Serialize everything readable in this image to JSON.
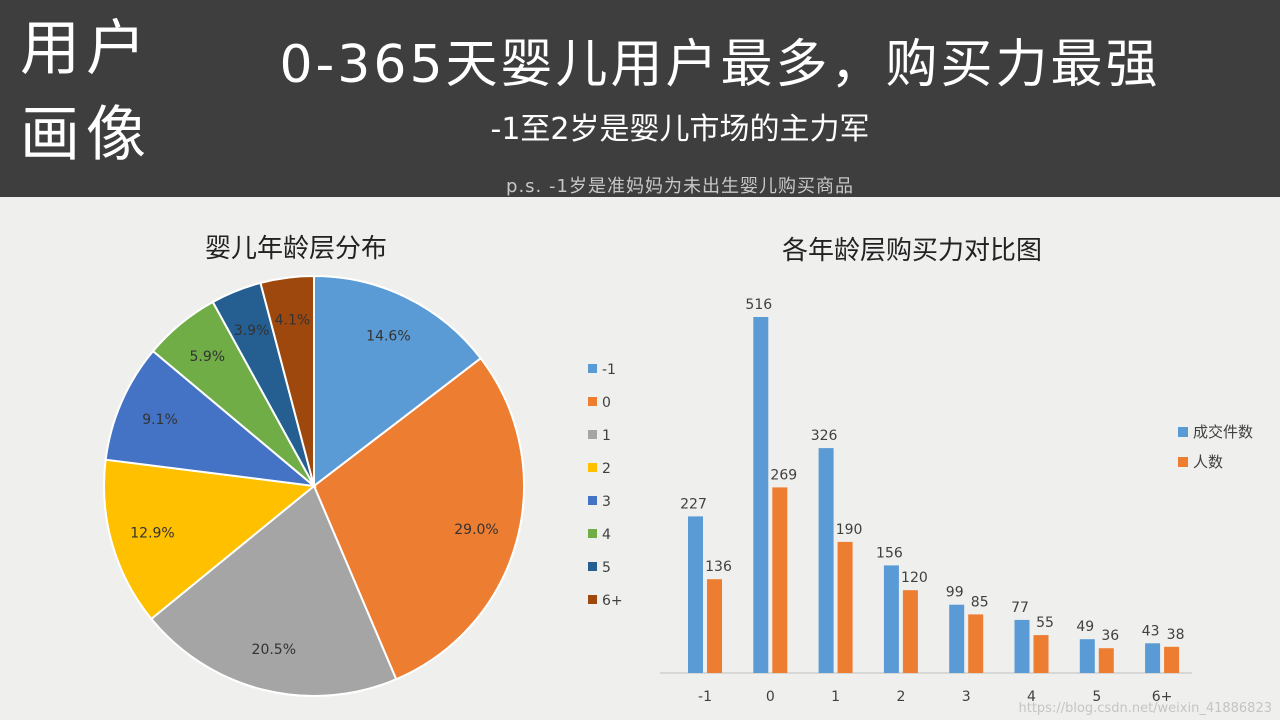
{
  "header": {
    "section_label_line1": "用户",
    "section_label_line2": "画像",
    "title": "0-365天婴儿用户最多，购买力最强",
    "subtitle": "-1至2岁是婴儿市场的主力军",
    "note": "p.s. -1岁是准妈妈为未出生婴儿购买商品"
  },
  "watermark": "https://blog.csdn.net/weixin_41886823",
  "chart_data": [
    {
      "type": "pie",
      "title": "婴儿年龄层分布",
      "legend_position": "right",
      "categories": [
        "-1",
        "0",
        "1",
        "2",
        "3",
        "4",
        "5",
        "6+"
      ],
      "values": [
        14.6,
        29.0,
        20.5,
        12.9,
        9.1,
        5.9,
        3.9,
        4.1
      ],
      "labels": [
        "14.6%",
        "29.0%",
        "20.5%",
        "12.9%",
        "9.1%",
        "5.9%",
        "3.9%",
        "4.1%"
      ],
      "colors": [
        "#5b9bd5",
        "#ed7d31",
        "#a5a5a5",
        "#ffc000",
        "#4472c4",
        "#70ad47",
        "#255e91",
        "#9e480e"
      ]
    },
    {
      "type": "bar",
      "title": "各年龄层购买力对比图",
      "legend_position": "right",
      "grid": false,
      "categories": [
        "-1",
        "0",
        "1",
        "2",
        "3",
        "4",
        "5",
        "6+"
      ],
      "series": [
        {
          "name": "成交件数",
          "color": "#5b9bd5",
          "values": [
            227,
            516,
            326,
            156,
            99,
            77,
            49,
            43
          ]
        },
        {
          "name": "人数",
          "color": "#ed7d31",
          "values": [
            136,
            269,
            190,
            120,
            85,
            55,
            36,
            38
          ]
        }
      ],
      "ylim": [
        0,
        516
      ]
    }
  ]
}
